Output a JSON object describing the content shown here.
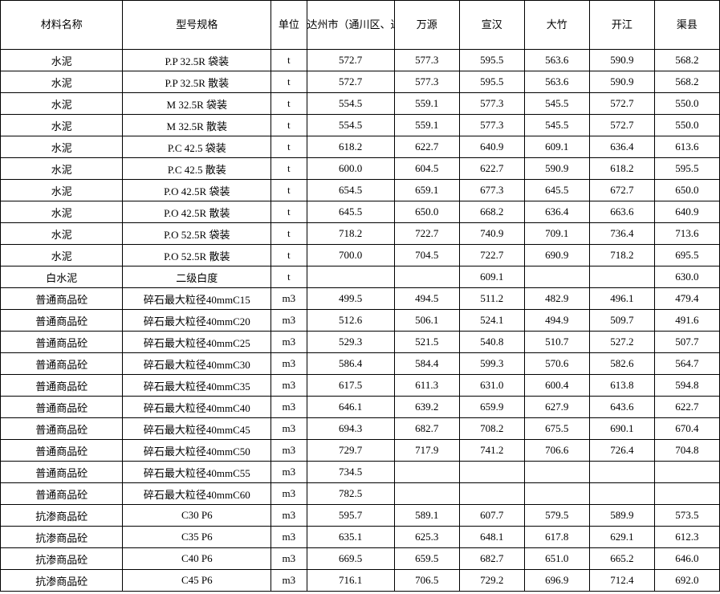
{
  "columns": [
    {
      "key": "name",
      "label": "材料名称",
      "class": "col-name"
    },
    {
      "key": "spec",
      "label": "型号规格",
      "class": "col-spec"
    },
    {
      "key": "unit",
      "label": "单位",
      "class": "col-unit"
    },
    {
      "key": "v1",
      "label": "达州市（通川区、达川区、高新区）",
      "class": "col-v1"
    },
    {
      "key": "v2",
      "label": "万源",
      "class": "col-v"
    },
    {
      "key": "v3",
      "label": "宣汉",
      "class": "col-v"
    },
    {
      "key": "v4",
      "label": "大竹",
      "class": "col-v"
    },
    {
      "key": "v5",
      "label": "开江",
      "class": "col-v"
    },
    {
      "key": "v6",
      "label": "渠县",
      "class": "col-v"
    }
  ],
  "rows": [
    {
      "name": "水泥",
      "spec": "P.P 32.5R 袋装",
      "unit": "t",
      "v1": "572.7",
      "v2": "577.3",
      "v3": "595.5",
      "v4": "563.6",
      "v5": "590.9",
      "v6": "568.2"
    },
    {
      "name": "水泥",
      "spec": "P.P 32.5R 散装",
      "unit": "t",
      "v1": "572.7",
      "v2": "577.3",
      "v3": "595.5",
      "v4": "563.6",
      "v5": "590.9",
      "v6": "568.2"
    },
    {
      "name": "水泥",
      "spec": "M 32.5R 袋装",
      "unit": "t",
      "v1": "554.5",
      "v2": "559.1",
      "v3": "577.3",
      "v4": "545.5",
      "v5": "572.7",
      "v6": "550.0"
    },
    {
      "name": "水泥",
      "spec": "M 32.5R 散装",
      "unit": "t",
      "v1": "554.5",
      "v2": "559.1",
      "v3": "577.3",
      "v4": "545.5",
      "v5": "572.7",
      "v6": "550.0"
    },
    {
      "name": "水泥",
      "spec": "P.C 42.5 袋装",
      "unit": "t",
      "v1": "618.2",
      "v2": "622.7",
      "v3": "640.9",
      "v4": "609.1",
      "v5": "636.4",
      "v6": "613.6"
    },
    {
      "name": "水泥",
      "spec": "P.C 42.5 散装",
      "unit": "t",
      "v1": "600.0",
      "v2": "604.5",
      "v3": "622.7",
      "v4": "590.9",
      "v5": "618.2",
      "v6": "595.5"
    },
    {
      "name": "水泥",
      "spec": "P.O 42.5R 袋装",
      "unit": "t",
      "v1": "654.5",
      "v2": "659.1",
      "v3": "677.3",
      "v4": "645.5",
      "v5": "672.7",
      "v6": "650.0"
    },
    {
      "name": "水泥",
      "spec": "P.O 42.5R 散装",
      "unit": "t",
      "v1": "645.5",
      "v2": "650.0",
      "v3": "668.2",
      "v4": "636.4",
      "v5": "663.6",
      "v6": "640.9"
    },
    {
      "name": "水泥",
      "spec": "P.O 52.5R 袋装",
      "unit": "t",
      "v1": "718.2",
      "v2": "722.7",
      "v3": "740.9",
      "v4": "709.1",
      "v5": "736.4",
      "v6": "713.6"
    },
    {
      "name": "水泥",
      "spec": "P.O 52.5R 散装",
      "unit": "t",
      "v1": "700.0",
      "v2": "704.5",
      "v3": "722.7",
      "v4": "690.9",
      "v5": "718.2",
      "v6": "695.5"
    },
    {
      "name": "白水泥",
      "spec": "二级白度",
      "unit": "t",
      "v1": "",
      "v2": "",
      "v3": "609.1",
      "v4": "",
      "v5": "",
      "v6": "630.0"
    },
    {
      "name": "普通商品砼",
      "spec": "碎石最大粒径40mmC15",
      "unit": "m3",
      "v1": "499.5",
      "v2": "494.5",
      "v3": "511.2",
      "v4": "482.9",
      "v5": "496.1",
      "v6": "479.4"
    },
    {
      "name": "普通商品砼",
      "spec": "碎石最大粒径40mmC20",
      "unit": "m3",
      "v1": "512.6",
      "v2": "506.1",
      "v3": "524.1",
      "v4": "494.9",
      "v5": "509.7",
      "v6": "491.6"
    },
    {
      "name": "普通商品砼",
      "spec": "碎石最大粒径40mmC25",
      "unit": "m3",
      "v1": "529.3",
      "v2": "521.5",
      "v3": "540.8",
      "v4": "510.7",
      "v5": "527.2",
      "v6": "507.7"
    },
    {
      "name": "普通商品砼",
      "spec": "碎石最大粒径40mmC30",
      "unit": "m3",
      "v1": "586.4",
      "v2": "584.4",
      "v3": "599.3",
      "v4": "570.6",
      "v5": "582.6",
      "v6": "564.7"
    },
    {
      "name": "普通商品砼",
      "spec": "碎石最大粒径40mmC35",
      "unit": "m3",
      "v1": "617.5",
      "v2": "611.3",
      "v3": "631.0",
      "v4": "600.4",
      "v5": "613.8",
      "v6": "594.8"
    },
    {
      "name": "普通商品砼",
      "spec": "碎石最大粒径40mmC40",
      "unit": "m3",
      "v1": "646.1",
      "v2": "639.2",
      "v3": "659.9",
      "v4": "627.9",
      "v5": "643.6",
      "v6": "622.7"
    },
    {
      "name": "普通商品砼",
      "spec": "碎石最大粒径40mmC45",
      "unit": "m3",
      "v1": "694.3",
      "v2": "682.7",
      "v3": "708.2",
      "v4": "675.5",
      "v5": "690.1",
      "v6": "670.4"
    },
    {
      "name": "普通商品砼",
      "spec": "碎石最大粒径40mmC50",
      "unit": "m3",
      "v1": "729.7",
      "v2": "717.9",
      "v3": "741.2",
      "v4": "706.6",
      "v5": "726.4",
      "v6": "704.8"
    },
    {
      "name": "普通商品砼",
      "spec": "碎石最大粒径40mmC55",
      "unit": "m3",
      "v1": "734.5",
      "v2": "",
      "v3": "",
      "v4": "",
      "v5": "",
      "v6": ""
    },
    {
      "name": "普通商品砼",
      "spec": "碎石最大粒径40mmC60",
      "unit": "m3",
      "v1": "782.5",
      "v2": "",
      "v3": "",
      "v4": "",
      "v5": "",
      "v6": ""
    },
    {
      "name": "抗渗商品砼",
      "spec": "C30 P6",
      "unit": "m3",
      "v1": "595.7",
      "v2": "589.1",
      "v3": "607.7",
      "v4": "579.5",
      "v5": "589.9",
      "v6": "573.5"
    },
    {
      "name": "抗渗商品砼",
      "spec": "C35 P6",
      "unit": "m3",
      "v1": "635.1",
      "v2": "625.3",
      "v3": "648.1",
      "v4": "617.8",
      "v5": "629.1",
      "v6": "612.3"
    },
    {
      "name": "抗渗商品砼",
      "spec": "C40 P6",
      "unit": "m3",
      "v1": "669.5",
      "v2": "659.5",
      "v3": "682.7",
      "v4": "651.0",
      "v5": "665.2",
      "v6": "646.0"
    },
    {
      "name": "抗渗商品砼",
      "spec": "C45 P6",
      "unit": "m3",
      "v1": "716.1",
      "v2": "706.5",
      "v3": "729.2",
      "v4": "696.9",
      "v5": "712.4",
      "v6": "692.0"
    }
  ]
}
